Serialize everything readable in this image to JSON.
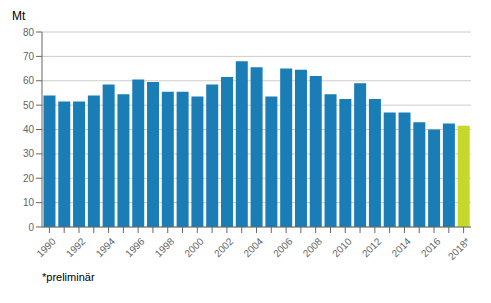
{
  "chart_data": {
    "type": "bar",
    "ylabel": "Mt",
    "annotations": [
      "*preliminär"
    ],
    "categories": [
      "1990",
      null,
      "1992",
      null,
      "1994",
      null,
      "1996",
      null,
      "1998",
      null,
      "2000",
      null,
      "2002",
      null,
      "2004",
      null,
      "2006",
      null,
      "2008",
      null,
      "2010",
      null,
      "2012",
      null,
      "2014",
      null,
      "2016",
      null,
      "2018*"
    ],
    "values": [
      54,
      51.5,
      51.5,
      54,
      58.5,
      54.5,
      60.5,
      59.5,
      55.5,
      55.5,
      53.5,
      58.5,
      61.5,
      68,
      65.5,
      53.5,
      65,
      64.5,
      62,
      54.5,
      52.5,
      59,
      52.5,
      47,
      47,
      43,
      40,
      42.5,
      41.5
    ],
    "colors": [
      "#1b7db5",
      "#1b7db5",
      "#1b7db5",
      "#1b7db5",
      "#1b7db5",
      "#1b7db5",
      "#1b7db5",
      "#1b7db5",
      "#1b7db5",
      "#1b7db5",
      "#1b7db5",
      "#1b7db5",
      "#1b7db5",
      "#1b7db5",
      "#1b7db5",
      "#1b7db5",
      "#1b7db5",
      "#1b7db5",
      "#1b7db5",
      "#1b7db5",
      "#1b7db5",
      "#1b7db5",
      "#1b7db5",
      "#1b7db5",
      "#1b7db5",
      "#1b7db5",
      "#1b7db5",
      "#1b7db5",
      "#c5d92a"
    ],
    "ylim": [
      0,
      80
    ],
    "yticks": [
      0,
      10,
      20,
      30,
      40,
      50,
      60,
      70,
      80
    ],
    "grid": true
  }
}
